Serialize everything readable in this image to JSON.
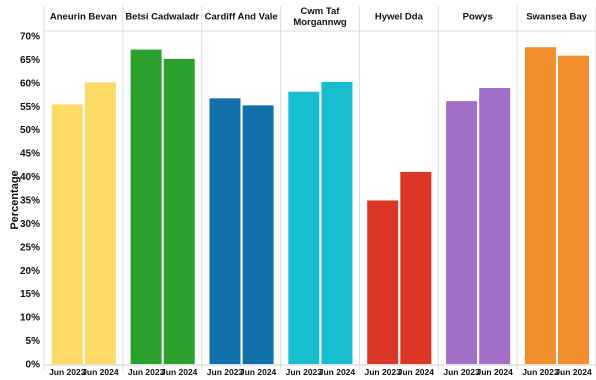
{
  "chart_data": {
    "type": "bar",
    "ylabel": "Percentage",
    "ylim": [
      0,
      70
    ],
    "y_ticks": [
      "0%",
      "5%",
      "10%",
      "15%",
      "20%",
      "25%",
      "30%",
      "35%",
      "40%",
      "45%",
      "50%",
      "55%",
      "60%",
      "65%",
      "70%"
    ],
    "categories": [
      "Jun 2023",
      "Jun 2024"
    ],
    "grid": "vertical panel dividers",
    "panels": [
      {
        "name": "Aneurin Bevan",
        "color": "#FFD966",
        "values": [
          55.4,
          60.1
        ]
      },
      {
        "name": "Betsi Cadwaladr",
        "color": "#2CA02C",
        "values": [
          67.1,
          65.1
        ]
      },
      {
        "name": "Cardiff And Vale",
        "color": "#1170AA",
        "values": [
          56.7,
          55.2
        ]
      },
      {
        "name": "Cwm Taf Morgannwg",
        "name_lines": [
          "Cwm Taf",
          "Morgannwg"
        ],
        "color": "#17BECF",
        "values": [
          58.1,
          60.2
        ]
      },
      {
        "name": "Hywel Dda",
        "color": "#DC3626",
        "values": [
          34.9,
          41.0
        ]
      },
      {
        "name": "Powys",
        "color": "#A16FC7",
        "values": [
          56.1,
          58.9
        ]
      },
      {
        "name": "Swansea Bay",
        "color": "#F28E2B",
        "values": [
          67.6,
          65.8
        ]
      }
    ]
  }
}
